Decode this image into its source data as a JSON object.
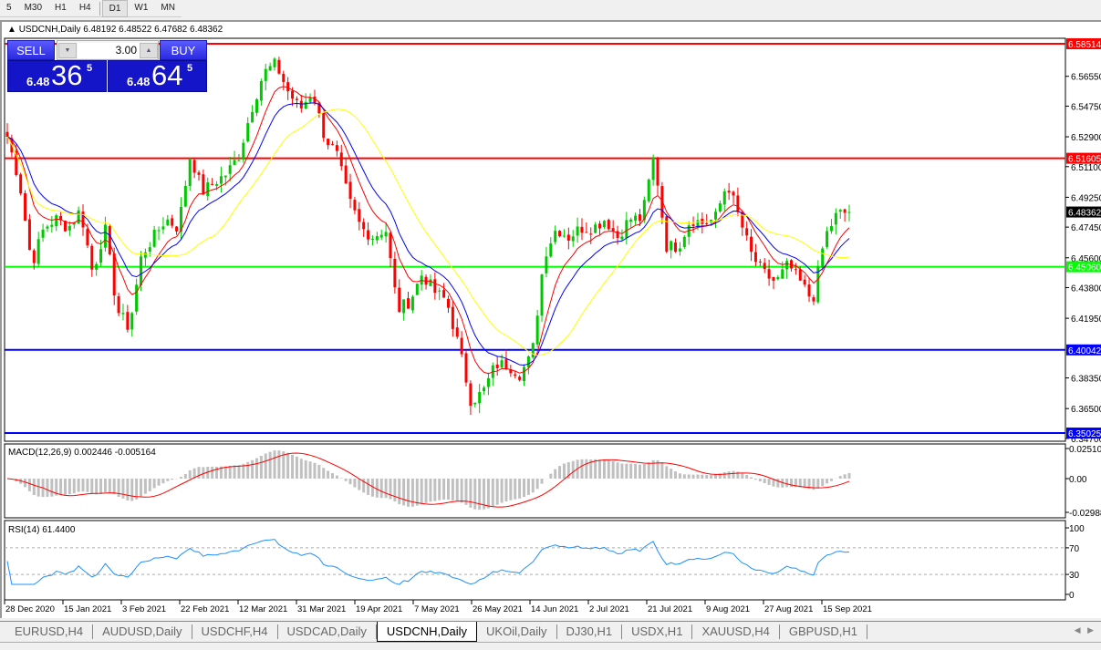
{
  "toolbar": {
    "timeframes": [
      {
        "label": "5"
      },
      {
        "label": "M30"
      },
      {
        "label": "H1"
      },
      {
        "label": "H4"
      },
      {
        "label": "D1",
        "active": true
      },
      {
        "label": "W1"
      },
      {
        "label": "MN"
      }
    ]
  },
  "chart": {
    "header": "USDCNH,Daily  6.48192 6.48522 6.47682 6.48362"
  },
  "trade_panel": {
    "sell_label": "SELL",
    "buy_label": "BUY",
    "lot": "3.00",
    "sell_big": "6.48",
    "sell_pips": "36",
    "sell_frac": "5",
    "buy_big": "6.48",
    "buy_pips": "64",
    "buy_frac": "5"
  },
  "colors": {
    "bull": "#00c800",
    "bear": "#ff0000",
    "ma_fast": "#ff0000",
    "ma_mid": "#0000ff",
    "ma_slow": "#ffff00",
    "macd_hist": "#c0c0c0",
    "macd_signal": "#ff0000",
    "rsi": "#1e90ff"
  },
  "chart_data": {
    "type": "candlestick",
    "symbol": "USDCNH",
    "timeframe": "Daily",
    "ylim": [
      6.347,
      6.5915
    ],
    "y_ticks": [
      "6.56550",
      "6.54750",
      "6.52900",
      "6.51100",
      "6.49250",
      "6.47450",
      "6.45600",
      "6.43800",
      "6.41950",
      "6.38350",
      "6.36500",
      "6.34700"
    ],
    "x_ticks": [
      "28 Dec 2020",
      "15 Jan 2021",
      "3 Feb 2021",
      "22 Feb 2021",
      "12 Mar 2021",
      "31 Mar 2021",
      "19 Apr 2021",
      "7 May 2021",
      "26 May 2021",
      "14 Jun 2021",
      "2 Jul 2021",
      "21 Jul 2021",
      "9 Aug 2021",
      "27 Aug 2021",
      "15 Sep 2021"
    ],
    "close_samples": [
      6.5291,
      6.5016,
      6.452,
      6.474,
      6.4795,
      6.474,
      6.485,
      6.4465,
      6.474,
      6.4245,
      6.4135,
      6.4575,
      6.4685,
      6.4795,
      6.474,
      6.518,
      6.496,
      6.5016,
      6.507,
      6.518,
      6.5455,
      6.5675,
      6.573,
      6.5565,
      6.5455,
      6.5565,
      6.5291,
      6.518,
      6.4905,
      6.474,
      6.4685,
      6.474,
      6.4245,
      6.43,
      6.4465,
      6.4355,
      6.43,
      6.4025,
      6.3695,
      6.375,
      6.3915,
      6.3915,
      6.386,
      6.397,
      6.4575,
      6.474,
      6.4685,
      6.474,
      6.474,
      6.4795,
      6.4685,
      6.4795,
      6.4795,
      6.518,
      6.463,
      6.463,
      6.4795,
      6.4768,
      6.4795,
      6.5016,
      6.4795,
      6.4575,
      6.4465,
      6.441,
      6.452,
      6.441,
      6.43,
      6.4685,
      6.4823,
      6.48362
    ],
    "last_price": "6.48362",
    "levels": [
      {
        "price": "6.58514",
        "color": "#ff0000"
      },
      {
        "price": "6.51605",
        "color": "#ff0000"
      },
      {
        "price": "6.45060",
        "color": "#00ff00"
      },
      {
        "price": "6.40042",
        "color": "#0000ff"
      },
      {
        "price": "6.35025",
        "color": "#0000ff"
      }
    ],
    "macd": {
      "label": "MACD(12,26,9) 0.002446 -0.005164",
      "ticks": [
        "0.025108",
        "0.00",
        "-0.02988"
      ],
      "ylim": [
        -0.02988,
        0.025108
      ]
    },
    "rsi": {
      "label": "RSI(14) 61.4400",
      "ticks": [
        "100",
        "70",
        "30",
        "0"
      ],
      "levels": [
        70,
        30
      ]
    }
  },
  "tabs": [
    {
      "label": "EURUSD,H4"
    },
    {
      "label": "AUDUSD,Daily"
    },
    {
      "label": "USDCHF,H4"
    },
    {
      "label": "USDCAD,Daily"
    },
    {
      "label": "USDCNH,Daily",
      "active": true
    },
    {
      "label": "UKOil,Daily"
    },
    {
      "label": "DJ30,H1"
    },
    {
      "label": "USDX,H1"
    },
    {
      "label": "XAUUSD,H4"
    },
    {
      "label": "GBPUSD,H1"
    }
  ]
}
